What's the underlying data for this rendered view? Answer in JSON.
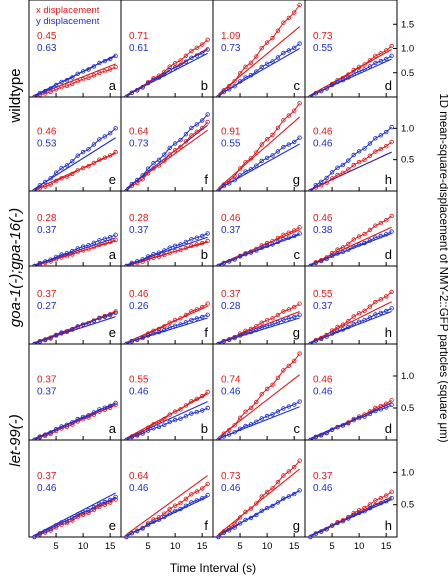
{
  "chart_data": {
    "type": "line",
    "xlabel": "Time Interval (s)",
    "ylabel": "1D mean-square-displacement of NMY-2::GFP particles (square μm)",
    "legend": {
      "entries": [
        {
          "name": "x displacement",
          "color": "#e0191b"
        },
        {
          "name": "y displacement",
          "color": "#1f2fd0"
        }
      ],
      "placement": "top-left"
    },
    "x_ticks": [
      5,
      10,
      15
    ],
    "xlim": [
      0,
      17
    ],
    "groups": [
      {
        "label": "wildtype",
        "ylim": [
          0,
          2.0
        ],
        "y_ticks": [
          0.5,
          1.0,
          1.5
        ],
        "y_tick_labels": [
          "0.5",
          "1.0",
          "1.5"
        ],
        "panels": [
          {
            "letter": "a",
            "alpha_x": "0.45",
            "alpha_y": "0.63",
            "x_end": 0.62,
            "y_end": 0.85,
            "x_fit_end": 0.68,
            "y_fit_end": 0.86
          },
          {
            "letter": "b",
            "alpha_x": "0.71",
            "alpha_y": "0.61",
            "x_end": 1.18,
            "y_end": 0.98,
            "x_fit_end": 1.0,
            "y_fit_end": 0.9
          },
          {
            "letter": "c",
            "alpha_x": "1.09",
            "alpha_y": "0.73",
            "x_end": 1.9,
            "y_end": 1.1,
            "x_fit_end": 1.45,
            "y_fit_end": 1.0
          },
          {
            "letter": "d",
            "alpha_x": "0.73",
            "alpha_y": "0.55",
            "x_end": 1.05,
            "y_end": 0.85,
            "x_fit_end": 0.98,
            "y_fit_end": 0.78
          }
        ]
      },
      {
        "label": "",
        "ylim": [
          0,
          1.5
        ],
        "y_ticks": [
          0.5,
          1.0
        ],
        "y_tick_labels": [
          "0.5",
          "1.0"
        ],
        "panels": [
          {
            "letter": "e",
            "alpha_x": "0.46",
            "alpha_y": "0.53",
            "x_end": 0.62,
            "y_end": 1.0,
            "x_fit_end": 0.6,
            "y_fit_end": 0.85
          },
          {
            "letter": "f",
            "alpha_x": "0.64",
            "alpha_y": "0.73",
            "x_end": 1.1,
            "y_end": 1.22,
            "x_fit_end": 0.97,
            "y_fit_end": 1.05
          },
          {
            "letter": "g",
            "alpha_x": "0.91",
            "alpha_y": "0.55",
            "x_end": 1.4,
            "y_end": 0.85,
            "x_fit_end": 1.18,
            "y_fit_end": 0.75
          },
          {
            "letter": "h",
            "alpha_x": "0.46",
            "alpha_y": "0.46",
            "x_end": 0.78,
            "y_end": 1.02,
            "x_fit_end": 0.62,
            "y_fit_end": 0.62
          }
        ]
      },
      {
        "label": "goa-1(-);gpa-16(-)",
        "ylim": [
          0,
          1.2
        ],
        "y_ticks": [],
        "y_tick_labels": [],
        "panels": [
          {
            "letter": "a",
            "alpha_x": "0.28",
            "alpha_y": "0.37",
            "x_end": 0.42,
            "y_end": 0.5,
            "x_fit_end": 0.4,
            "y_fit_end": 0.45
          },
          {
            "letter": "b",
            "alpha_x": "0.28",
            "alpha_y": "0.37",
            "x_end": 0.4,
            "y_end": 0.52,
            "x_fit_end": 0.38,
            "y_fit_end": 0.46
          },
          {
            "letter": "c",
            "alpha_x": "0.46",
            "alpha_y": "0.37",
            "x_end": 0.62,
            "y_end": 0.52,
            "x_fit_end": 0.58,
            "y_fit_end": 0.5
          },
          {
            "letter": "d",
            "alpha_x": "0.46",
            "alpha_y": "0.38",
            "x_end": 0.8,
            "y_end": 0.55,
            "x_fit_end": 0.62,
            "y_fit_end": 0.52
          }
        ]
      },
      {
        "label": "",
        "ylim": [
          0,
          1.2
        ],
        "y_ticks": [],
        "y_tick_labels": [],
        "panels": [
          {
            "letter": "e",
            "alpha_x": "0.37",
            "alpha_y": "0.27",
            "x_end": 0.5,
            "y_end": 0.48,
            "x_fit_end": 0.5,
            "y_fit_end": 0.42
          },
          {
            "letter": "f",
            "alpha_x": "0.46",
            "alpha_y": "0.26",
            "x_end": 0.62,
            "y_end": 0.45,
            "x_fit_end": 0.58,
            "y_fit_end": 0.4
          },
          {
            "letter": "g",
            "alpha_x": "0.37",
            "alpha_y": "0.28",
            "x_end": 0.62,
            "y_end": 0.45,
            "x_fit_end": 0.5,
            "y_fit_end": 0.4
          },
          {
            "letter": "h",
            "alpha_x": "0.55",
            "alpha_y": "0.37",
            "x_end": 0.8,
            "y_end": 0.55,
            "x_fit_end": 0.65,
            "y_fit_end": 0.5
          }
        ]
      },
      {
        "label": "let-99(-)",
        "ylim": [
          0,
          1.5
        ],
        "y_ticks": [
          0.5,
          1.0
        ],
        "y_tick_labels": [
          "0.5",
          "1.0"
        ],
        "panels": [
          {
            "letter": "a",
            "alpha_x": "0.37",
            "alpha_y": "0.37",
            "x_end": 0.55,
            "y_end": 0.58,
            "x_fit_end": 0.58,
            "y_fit_end": 0.55
          },
          {
            "letter": "b",
            "alpha_x": "0.55",
            "alpha_y": "0.46",
            "x_end": 0.75,
            "y_end": 0.5,
            "x_fit_end": 0.72,
            "y_fit_end": 0.6
          },
          {
            "letter": "c",
            "alpha_x": "0.74",
            "alpha_y": "0.46",
            "x_end": 1.35,
            "y_end": 0.6,
            "x_fit_end": 1.02,
            "y_fit_end": 0.52
          },
          {
            "letter": "d",
            "alpha_x": "0.46",
            "alpha_y": "0.46",
            "x_end": 0.62,
            "y_end": 0.55,
            "x_fit_end": 0.58,
            "y_fit_end": 0.58
          }
        ]
      },
      {
        "label": "",
        "ylim": [
          0,
          1.5
        ],
        "y_ticks": [
          0.5,
          1.0
        ],
        "y_tick_labels": [
          "0.5",
          "1.0"
        ],
        "panels": [
          {
            "letter": "e",
            "alpha_x": "0.37",
            "alpha_y": "0.46",
            "x_end": 0.58,
            "y_end": 0.62,
            "x_fit_end": 0.6,
            "y_fit_end": 0.68
          },
          {
            "letter": "f",
            "alpha_x": "0.64",
            "alpha_y": "0.46",
            "x_end": 0.82,
            "y_end": 0.65,
            "x_fit_end": 0.95,
            "y_fit_end": 0.62
          },
          {
            "letter": "g",
            "alpha_x": "0.73",
            "alpha_y": "0.46",
            "x_end": 1.18,
            "y_end": 0.72,
            "x_fit_end": 1.05,
            "y_fit_end": 0.72
          },
          {
            "letter": "h",
            "alpha_x": "0.37",
            "alpha_y": "0.46",
            "x_end": 0.7,
            "y_end": 0.6,
            "x_fit_end": 0.62,
            "y_fit_end": 0.58
          }
        ]
      }
    ]
  }
}
